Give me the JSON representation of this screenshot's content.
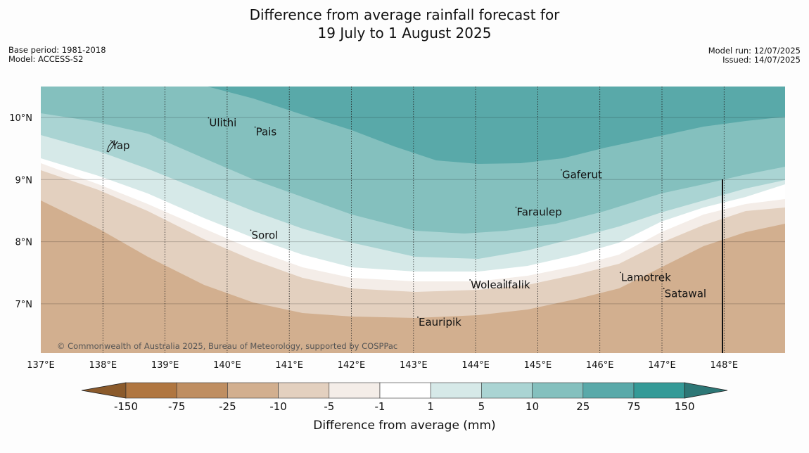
{
  "title": {
    "line1": "Difference from average rainfall forecast for",
    "line2": "19 July to 1 August 2025"
  },
  "meta_left": {
    "base_period": "Base period: 1981-2018",
    "model": "Model: ACCESS-S2"
  },
  "meta_right": {
    "model_run": "Model run: 12/07/2025",
    "issued": "Issued: 14/07/2025"
  },
  "map": {
    "lon_range": [
      137,
      149
    ],
    "lat_range": [
      6.2,
      10.5
    ],
    "lat_ticks": [
      {
        "value": 10,
        "label": "10°N"
      },
      {
        "value": 9,
        "label": "9°N"
      },
      {
        "value": 8,
        "label": "8°N"
      },
      {
        "value": 7,
        "label": "7°N"
      }
    ],
    "lon_ticks": [
      {
        "value": 137,
        "label": "137°E"
      },
      {
        "value": 138,
        "label": "138°E"
      },
      {
        "value": 139,
        "label": "139°E"
      },
      {
        "value": 140,
        "label": "140°E"
      },
      {
        "value": 141,
        "label": "141°E"
      },
      {
        "value": 142,
        "label": "142°E"
      },
      {
        "value": 143,
        "label": "143°E"
      },
      {
        "value": 144,
        "label": "144°E"
      },
      {
        "value": 145,
        "label": "145°E"
      },
      {
        "value": 146,
        "label": "146°E"
      },
      {
        "value": 147,
        "label": "147°E"
      },
      {
        "value": 148,
        "label": "148°E"
      }
    ],
    "places": [
      {
        "name": "Yap",
        "lon": 138.13,
        "lat": 9.5
      },
      {
        "name": "Ulithi",
        "lon": 139.7,
        "lat": 9.87
      },
      {
        "name": "Pais",
        "lon": 140.45,
        "lat": 9.72
      },
      {
        "name": "Gaferut",
        "lon": 145.38,
        "lat": 9.03
      },
      {
        "name": "Faraulep",
        "lon": 144.65,
        "lat": 8.43
      },
      {
        "name": "Sorol",
        "lon": 140.38,
        "lat": 8.06
      },
      {
        "name": "Woleai",
        "lon": 143.91,
        "lat": 7.26
      },
      {
        "name": "Ifalik",
        "lon": 144.46,
        "lat": 7.26
      },
      {
        "name": "Lamotrek",
        "lon": 146.33,
        "lat": 7.38
      },
      {
        "name": "Satawal",
        "lon": 147.03,
        "lat": 7.12
      },
      {
        "name": "Eauripik",
        "lon": 143.07,
        "lat": 6.66
      }
    ],
    "copyright": "© Commonwealth of Australia 2025, Bureau of Meteorology, supported by COSPPac"
  },
  "colorbar": {
    "title": "Difference from average (mm)",
    "labels": [
      "-150",
      "-75",
      "-25",
      "-10",
      "-5",
      "-1",
      "1",
      "5",
      "10",
      "25",
      "75",
      "150"
    ],
    "colors": [
      "#b07640",
      "#bf8e61",
      "#d2af8f",
      "#e3d0bf",
      "#f4ede8",
      "#ffffff",
      "#d6e9e8",
      "#aad4d3",
      "#84c0be",
      "#59a9a9",
      "#349a97"
    ],
    "under_color": "#8b5a2b",
    "over_color": "#2d7776"
  }
}
